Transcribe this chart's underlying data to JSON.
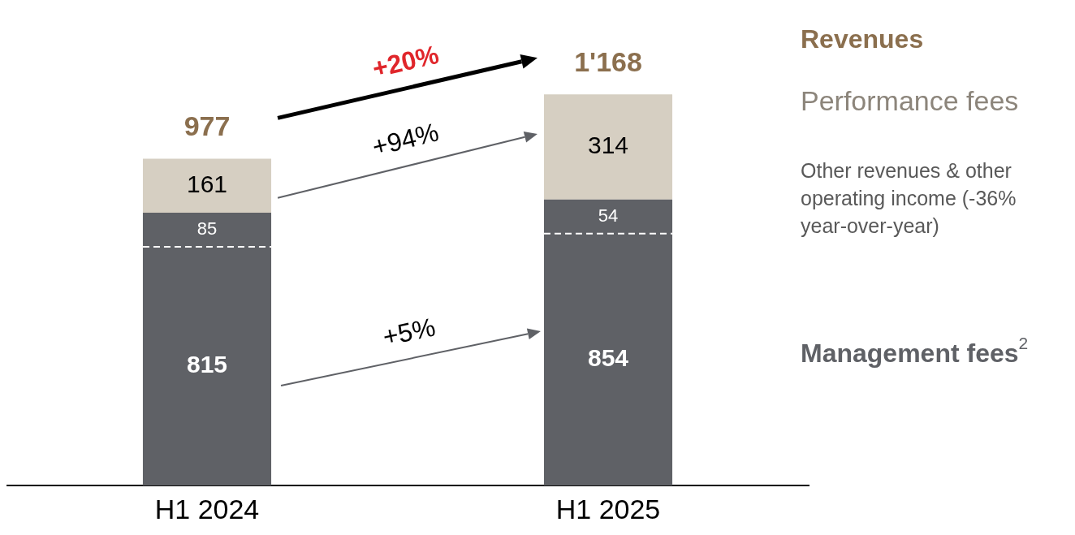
{
  "chart_data": {
    "type": "bar",
    "stacked": true,
    "categories": [
      "H1 2024",
      "H1 2025"
    ],
    "series": [
      {
        "name": "Management fees$^{2}$",
        "color": "#5f6166",
        "values": [
          815,
          854
        ]
      },
      {
        "name": "Performance fees",
        "color": "#d6cfc2",
        "values": [
          161,
          314
        ]
      }
    ],
    "data_labels": true,
    "totals": [
      "977",
      "1'168"
    ],
    "legend": false,
    "annotations": [
      "+20%",
      "+94%",
      "+5%",
      "Revenues",
      "Other revenues & other operating income (-36% year-over-year)",
      "85",
      "54"
    ]
  }
}
